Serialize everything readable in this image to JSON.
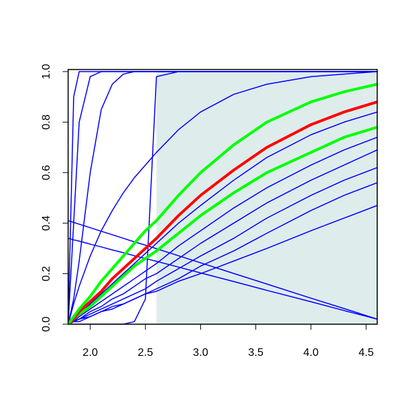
{
  "chart_data": {
    "type": "line",
    "x": [
      1.8,
      1.85,
      1.9,
      2.0,
      2.1,
      2.2,
      2.3,
      2.4,
      2.5,
      2.6,
      2.8,
      3.0,
      3.3,
      3.6,
      4.0,
      4.3,
      4.6
    ],
    "xlim": [
      1.8,
      4.6
    ],
    "ylim": [
      0,
      1
    ],
    "xticks": [
      {
        "value": 2,
        "label": "2.0"
      },
      2.5,
      {
        "value": 3,
        "label": "3.0"
      },
      3.5,
      {
        "value": 4,
        "label": "4.0"
      },
      4.5
    ],
    "yticks": [
      {
        "value": 0,
        "label": "0.0"
      },
      0.2,
      0.4,
      0.6,
      0.8,
      {
        "value": 1,
        "label": "1.0"
      }
    ],
    "shade_xlim": [
      2.6,
      4.6
    ],
    "shade_color": "#deecec",
    "series": [
      {
        "color": "#0000ff",
        "lwd": 1.5,
        "values": [
          0,
          0.02,
          0.04,
          0.08,
          0.12,
          0.16,
          0.2,
          0.24,
          0.28,
          0.32,
          0.4,
          0.47,
          0.57,
          0.66,
          0.75,
          0.8,
          0.84
        ]
      },
      {
        "color": "#0000ff",
        "lwd": 1.5,
        "values": [
          0,
          0.01,
          0.03,
          0.06,
          0.09,
          0.12,
          0.15,
          0.18,
          0.21,
          0.24,
          0.31,
          0.37,
          0.46,
          0.54,
          0.63,
          0.69,
          0.74
        ]
      },
      {
        "color": "#0000ff",
        "lwd": 1.5,
        "values": [
          0,
          0.01,
          0.02,
          0.05,
          0.07,
          0.1,
          0.12,
          0.15,
          0.18,
          0.2,
          0.26,
          0.32,
          0.4,
          0.48,
          0.57,
          0.63,
          0.69
        ]
      },
      {
        "color": "#0000ff",
        "lwd": 1.5,
        "values": [
          0,
          0.01,
          0.02,
          0.04,
          0.06,
          0.08,
          0.1,
          0.12,
          0.14,
          0.17,
          0.22,
          0.27,
          0.34,
          0.42,
          0.51,
          0.57,
          0.62
        ]
      },
      {
        "color": "#0000ff",
        "lwd": 1.5,
        "values": [
          0,
          0.01,
          0.01,
          0.03,
          0.05,
          0.06,
          0.08,
          0.1,
          0.12,
          0.14,
          0.18,
          0.23,
          0.29,
          0.36,
          0.45,
          0.51,
          0.56
        ]
      },
      {
        "color": "#0000ff",
        "lwd": 1.5,
        "values": [
          0,
          0.01,
          0.02,
          0.03,
          0.05,
          0.07,
          0.08,
          0.1,
          0.12,
          0.13,
          0.17,
          0.2,
          0.25,
          0.3,
          0.37,
          0.42,
          0.47
        ]
      },
      {
        "color": "#0000ff",
        "lwd": 1.5,
        "values": [
          0,
          0.08,
          0.15,
          0.27,
          0.37,
          0.45,
          0.52,
          0.58,
          0.63,
          0.68,
          0.77,
          0.84,
          0.91,
          0.95,
          0.98,
          0.99,
          1
        ]
      },
      {
        "color": "#0000ff",
        "lwd": 1.5,
        "values": [
          0,
          0.9,
          1,
          1,
          1,
          1,
          1,
          1,
          1,
          1,
          1,
          1,
          1,
          1,
          1,
          1,
          1
        ]
      },
      {
        "color": "#0000ff",
        "lwd": 1.5,
        "values": [
          0,
          0.4,
          0.8,
          0.98,
          1,
          1,
          1,
          1,
          1,
          1,
          1,
          1,
          1,
          1,
          1,
          1,
          1
        ]
      },
      {
        "color": "#0000ff",
        "lwd": 1.5,
        "values": [
          0,
          0.1,
          0.25,
          0.6,
          0.85,
          0.95,
          0.99,
          1,
          1,
          1,
          1,
          1,
          1,
          1,
          1,
          1,
          1
        ]
      },
      {
        "color": "#0000ff",
        "lwd": 1.5,
        "values": [
          0,
          0,
          0,
          0,
          0,
          0,
          0,
          0.01,
          0.1,
          0.98,
          1,
          1,
          1,
          1,
          1,
          1,
          1
        ]
      },
      {
        "color": "#0000ff",
        "lwd": 1.5,
        "values": [
          0.41,
          0.403,
          0.396,
          0.382,
          0.368,
          0.354,
          0.34,
          0.326,
          0.313,
          0.299,
          0.271,
          0.243,
          0.201,
          0.159,
          0.103,
          0.062,
          0.02
        ]
      },
      {
        "color": "#0000ff",
        "lwd": 1.5,
        "values": [
          0.34,
          0.334,
          0.329,
          0.317,
          0.306,
          0.294,
          0.283,
          0.271,
          0.26,
          0.249,
          0.226,
          0.203,
          0.169,
          0.134,
          0.089,
          0.054,
          0.02
        ]
      },
      {
        "color": "#00ff00",
        "lwd": 4,
        "values": [
          0,
          0.02,
          0.04,
          0.07,
          0.11,
          0.15,
          0.19,
          0.23,
          0.26,
          0.29,
          0.36,
          0.43,
          0.52,
          0.6,
          0.68,
          0.74,
          0.78
        ]
      },
      {
        "color": "#ff0000",
        "lwd": 4,
        "values": [
          0,
          0.02,
          0.05,
          0.09,
          0.13,
          0.18,
          0.22,
          0.26,
          0.3,
          0.34,
          0.43,
          0.51,
          0.61,
          0.7,
          0.79,
          0.84,
          0.88
        ]
      },
      {
        "color": "#00ff00",
        "lwd": 4,
        "values": [
          0,
          0.03,
          0.06,
          0.11,
          0.17,
          0.22,
          0.27,
          0.32,
          0.37,
          0.41,
          0.51,
          0.6,
          0.71,
          0.8,
          0.88,
          0.92,
          0.95
        ]
      }
    ]
  }
}
